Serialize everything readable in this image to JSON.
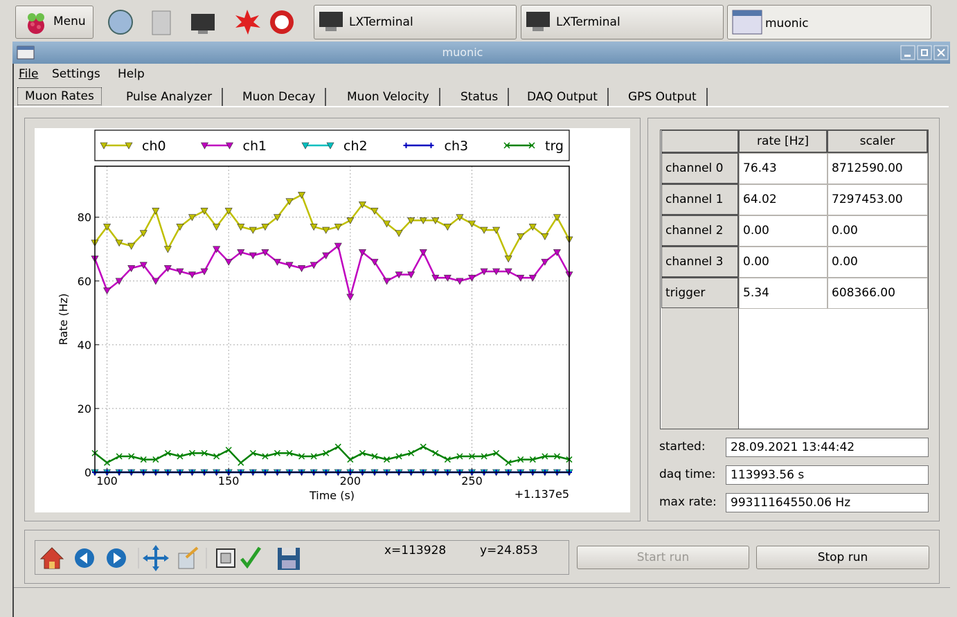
{
  "taskbar": {
    "menu": "Menu",
    "tasks": [
      "LXTerminal",
      "LXTerminal",
      "muonic"
    ]
  },
  "window": {
    "title": "muonic",
    "menu": [
      "File",
      "Settings",
      "Help"
    ],
    "tabs": [
      "Muon Rates",
      "Pulse Analyzer",
      "Muon Decay",
      "Muon Velocity",
      "Status",
      "DAQ Output",
      "GPS Output"
    ]
  },
  "chart_data": {
    "type": "line",
    "xlabel": "Time (s)",
    "ylabel": "Rate (Hz)",
    "x_offset": "+1.137e5",
    "xlim": [
      95,
      290
    ],
    "ylim": [
      0,
      96
    ],
    "xticks": [
      100,
      150,
      200,
      250
    ],
    "yticks": [
      0,
      20,
      40,
      60,
      80
    ],
    "grid": true,
    "x": [
      95,
      100,
      105,
      110,
      115,
      120,
      125,
      130,
      135,
      140,
      145,
      150,
      155,
      160,
      165,
      170,
      175,
      180,
      185,
      190,
      195,
      200,
      205,
      210,
      215,
      220,
      225,
      230,
      235,
      240,
      245,
      250,
      255,
      260,
      265,
      270,
      275,
      280,
      285,
      290
    ],
    "series": [
      {
        "name": "ch0",
        "color": "#bfbf00",
        "marker": "tri",
        "values": [
          72,
          77,
          72,
          71,
          75,
          82,
          70,
          77,
          80,
          82,
          77,
          82,
          77,
          76,
          77,
          80,
          85,
          87,
          77,
          76,
          77,
          79,
          84,
          82,
          78,
          75,
          79,
          79,
          79,
          77,
          80,
          78,
          76,
          76,
          67,
          74,
          77,
          74,
          80,
          73
        ]
      },
      {
        "name": "ch1",
        "color": "#bf00bf",
        "marker": "tri",
        "values": [
          67,
          57,
          60,
          64,
          65,
          60,
          64,
          63,
          62,
          63,
          70,
          66,
          69,
          68,
          69,
          66,
          65,
          64,
          65,
          68,
          71,
          55,
          69,
          66,
          60,
          62,
          62,
          69,
          61,
          61,
          60,
          61,
          63,
          63,
          63,
          61,
          61,
          66,
          69,
          62
        ]
      },
      {
        "name": "ch2",
        "color": "#00bfbf",
        "marker": "tri",
        "values": [
          0,
          0,
          0,
          0,
          0,
          0,
          0,
          0,
          0,
          0,
          0,
          0,
          0,
          0,
          0,
          0,
          0,
          0,
          0,
          0,
          0,
          0,
          0,
          0,
          0,
          0,
          0,
          0,
          0,
          0,
          0,
          0,
          0,
          0,
          0,
          0,
          0,
          0,
          0,
          0
        ]
      },
      {
        "name": "ch3",
        "color": "#0000bf",
        "marker": "plus",
        "values": [
          0,
          0,
          0,
          0,
          0,
          0,
          0,
          0,
          0,
          0,
          0,
          0,
          0,
          0,
          0,
          0,
          0,
          0,
          0,
          0,
          0,
          0,
          0,
          0,
          0,
          0,
          0,
          0,
          0,
          0,
          0,
          0,
          0,
          0,
          0,
          0,
          0,
          0,
          0,
          0
        ]
      },
      {
        "name": "trg",
        "color": "#008000",
        "marker": "x",
        "values": [
          6,
          3,
          5,
          5,
          4,
          4,
          6,
          5,
          6,
          6,
          5,
          7,
          3,
          6,
          5,
          6,
          6,
          5,
          5,
          6,
          8,
          4,
          6,
          5,
          4,
          5,
          6,
          8,
          6,
          4,
          5,
          5,
          5,
          6,
          3,
          4,
          4,
          5,
          5,
          4
        ]
      }
    ]
  },
  "table": {
    "headers": [
      "rate [Hz]",
      "scaler"
    ],
    "rows": [
      [
        "channel 0",
        "76.43",
        "8712590.00"
      ],
      [
        "channel 1",
        "64.02",
        "7297453.00"
      ],
      [
        "channel 2",
        "0.00",
        "0.00"
      ],
      [
        "channel 3",
        "0.00",
        "0.00"
      ],
      [
        "trigger",
        "5.34",
        "608366.00"
      ]
    ]
  },
  "info": [
    {
      "label": "started:",
      "value": "28.09.2021 13:44:42"
    },
    {
      "label": "daq time:",
      "value": "113993.56 s"
    },
    {
      "label": "max rate:",
      "value": "99311164550.06 Hz"
    }
  ],
  "toolbar": {
    "x_coord": "x=113928",
    "y_coord": "y=24.853",
    "start": "Start run",
    "stop": "Stop run"
  }
}
